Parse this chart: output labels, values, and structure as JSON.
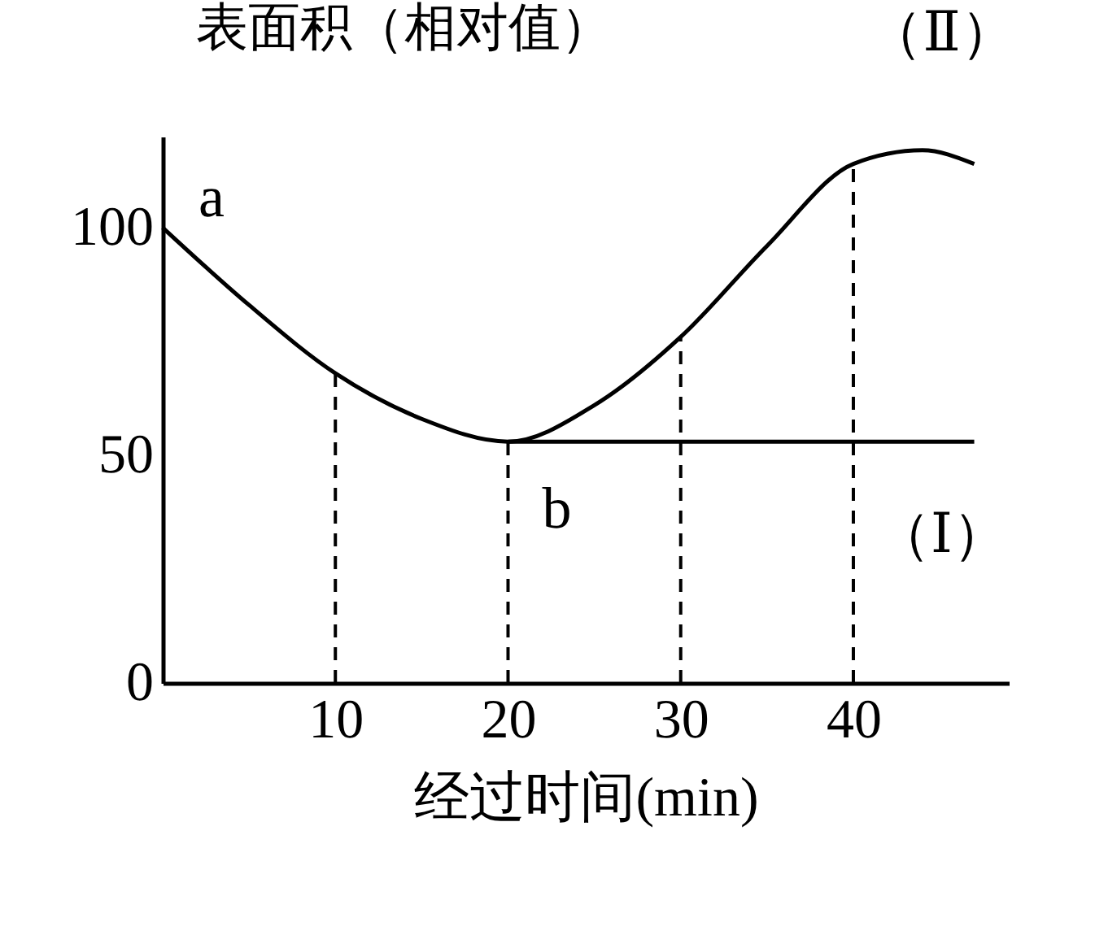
{
  "chart_data": {
    "type": "line",
    "xlabel": "经过时间(min)",
    "ylabel": "表面积（相对值）",
    "xlim": [
      0,
      49
    ],
    "ylim": [
      0,
      120
    ],
    "xticks": [
      10,
      20,
      30,
      40
    ],
    "yticks": [
      0,
      50,
      100
    ],
    "grid": false,
    "legend": false,
    "marker": "none",
    "line_style": "solid",
    "series": [
      {
        "name": "（Ⅱ）",
        "color": "#000000",
        "x": [
          0,
          5,
          10,
          15,
          20,
          25,
          30,
          35,
          40,
          44,
          47
        ],
        "values": [
          100,
          83,
          68,
          58,
          53,
          61,
          76,
          96,
          114,
          117,
          114
        ]
      },
      {
        "name": "（Ⅰ）",
        "color": "#000000",
        "x": [
          20,
          47
        ],
        "values": [
          53,
          53
        ]
      }
    ],
    "ref_lines": [
      {
        "axis": "x",
        "value": 10,
        "line_style": "dashed"
      },
      {
        "axis": "x",
        "value": 20,
        "line_style": "dashed"
      },
      {
        "axis": "x",
        "value": 30,
        "line_style": "dashed"
      },
      {
        "axis": "x",
        "value": 40,
        "line_style": "dashed"
      }
    ],
    "annotations": [
      {
        "text": "a",
        "x": 0,
        "y": 100
      },
      {
        "text": "b",
        "x": 20,
        "y": 53
      }
    ]
  }
}
